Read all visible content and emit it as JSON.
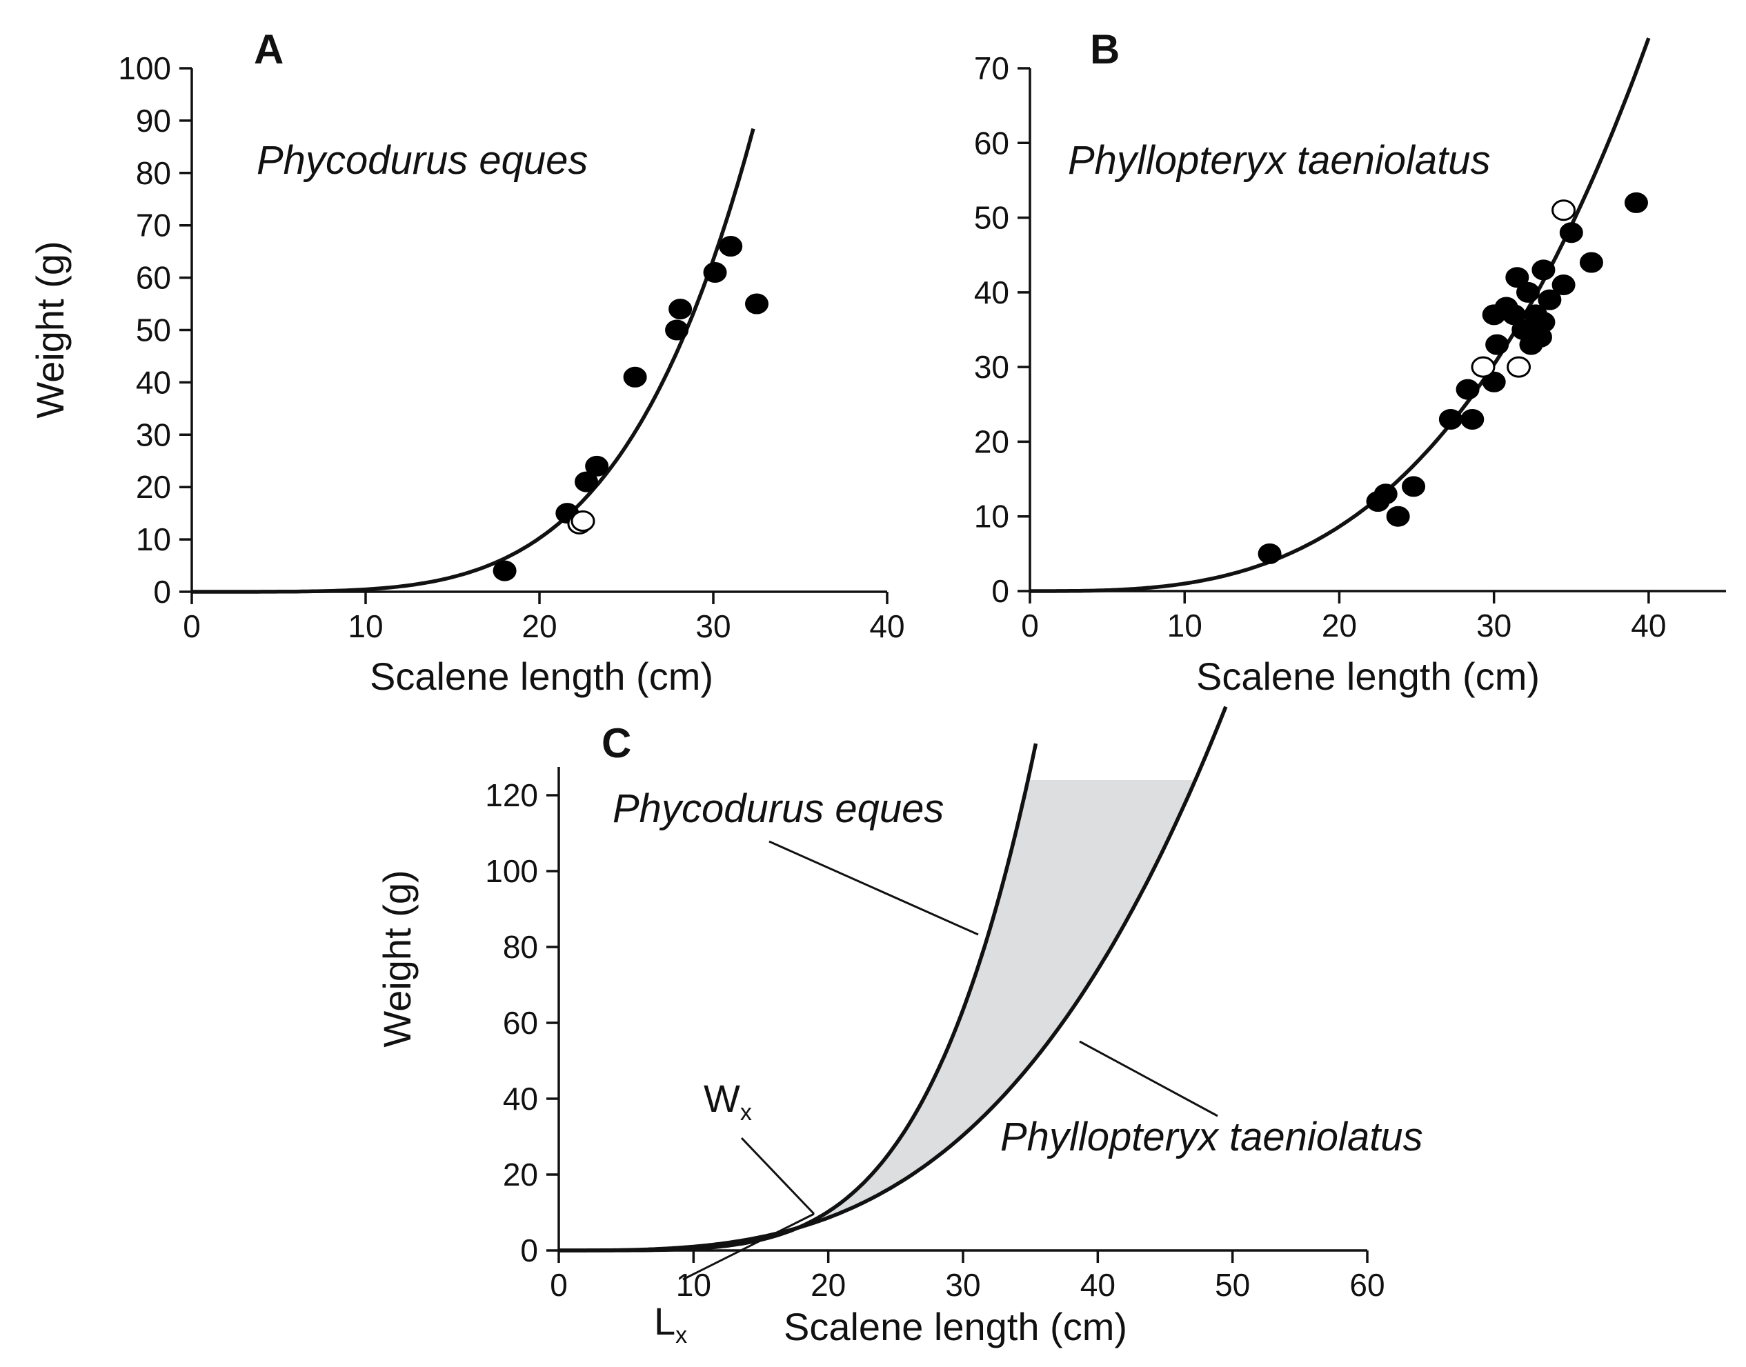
{
  "chart_data": [
    {
      "panel": "A",
      "type": "scatter",
      "title": "Phycodurus eques",
      "xlabel": "Scalene length (cm)",
      "ylabel": "Weight (g)",
      "xlim": [
        0,
        40
      ],
      "ylim": [
        0,
        100
      ],
      "xticks": [
        0,
        10,
        20,
        30,
        40
      ],
      "yticks": [
        0,
        10,
        20,
        30,
        40,
        50,
        60,
        70,
        80,
        90,
        100
      ],
      "series": [
        {
          "name": "filled",
          "marker": "filled-circle",
          "points": [
            {
              "x": 18.0,
              "y": 4
            },
            {
              "x": 21.6,
              "y": 15
            },
            {
              "x": 22.7,
              "y": 21
            },
            {
              "x": 23.3,
              "y": 24
            },
            {
              "x": 25.5,
              "y": 41
            },
            {
              "x": 27.9,
              "y": 50
            },
            {
              "x": 28.1,
              "y": 54
            },
            {
              "x": 30.1,
              "y": 61
            },
            {
              "x": 31.0,
              "y": 66
            },
            {
              "x": 32.5,
              "y": 55
            }
          ]
        },
        {
          "name": "open",
          "marker": "open-circle",
          "points": [
            {
              "x": 22.3,
              "y": 13
            },
            {
              "x": 22.5,
              "y": 13.5
            }
          ]
        },
        {
          "name": "fit",
          "marker": "line",
          "curve": {
            "a": 1.43e-05,
            "b": 4.5,
            "x_start": 0,
            "x_end": 32.3
          }
        }
      ]
    },
    {
      "panel": "B",
      "type": "scatter",
      "title": "Phyllopteryx taeniolatus",
      "xlabel": "Scalene length (cm)",
      "ylabel": "",
      "xlim": [
        0,
        45
      ],
      "ylim": [
        0,
        70
      ],
      "xticks": [
        0,
        10,
        20,
        30,
        40
      ],
      "yticks": [
        0,
        10,
        20,
        30,
        40,
        50,
        60,
        70
      ],
      "series": [
        {
          "name": "filled",
          "marker": "filled-circle",
          "points": [
            {
              "x": 15.5,
              "y": 5
            },
            {
              "x": 22.5,
              "y": 12
            },
            {
              "x": 23.0,
              "y": 13
            },
            {
              "x": 23.8,
              "y": 10
            },
            {
              "x": 24.8,
              "y": 14
            },
            {
              "x": 27.2,
              "y": 23
            },
            {
              "x": 28.3,
              "y": 27
            },
            {
              "x": 28.6,
              "y": 23
            },
            {
              "x": 29.3,
              "y": 30
            },
            {
              "x": 30.0,
              "y": 28
            },
            {
              "x": 30.2,
              "y": 33
            },
            {
              "x": 30.0,
              "y": 37
            },
            {
              "x": 30.8,
              "y": 38
            },
            {
              "x": 31.3,
              "y": 37
            },
            {
              "x": 31.5,
              "y": 42
            },
            {
              "x": 31.9,
              "y": 35
            },
            {
              "x": 32.2,
              "y": 40
            },
            {
              "x": 32.4,
              "y": 33
            },
            {
              "x": 32.7,
              "y": 37
            },
            {
              "x": 33.0,
              "y": 34
            },
            {
              "x": 33.2,
              "y": 43
            },
            {
              "x": 33.2,
              "y": 36
            },
            {
              "x": 33.6,
              "y": 39
            },
            {
              "x": 34.5,
              "y": 41
            },
            {
              "x": 35.0,
              "y": 48
            },
            {
              "x": 36.3,
              "y": 44
            },
            {
              "x": 39.2,
              "y": 52
            }
          ]
        },
        {
          "name": "open",
          "marker": "open-circle",
          "points": [
            {
              "x": 29.3,
              "y": 30
            },
            {
              "x": 31.6,
              "y": 30
            },
            {
              "x": 34.5,
              "y": 51
            }
          ]
        },
        {
          "name": "fit",
          "marker": "line",
          "curve": {
            "a": 0.0008,
            "b": 3.1,
            "x_start": 0,
            "x_end": 40.0
          }
        }
      ]
    },
    {
      "panel": "C",
      "type": "line",
      "title": "",
      "xlabel": "Scalene length (cm)",
      "ylabel": "Weight (g)",
      "xlim": [
        0,
        60
      ],
      "ylim": [
        0,
        130
      ],
      "xticks": [
        0,
        10,
        20,
        30,
        40,
        50,
        60
      ],
      "yticks": [
        0,
        20,
        40,
        60,
        80,
        100,
        120
      ],
      "series": [
        {
          "name": "Phycodurus eques",
          "curve": {
            "a": 1.43e-05,
            "b": 4.5,
            "x_start": 0,
            "x_end": 35.4
          }
        },
        {
          "name": "Phyllopteryx taeniolatus",
          "curve": {
            "a": 0.0008,
            "b": 3.1,
            "x_start": 0,
            "x_end": 49.5
          }
        }
      ],
      "shading": {
        "between": [
          "Phycodurus eques",
          "Phyllopteryx taeniolatus"
        ],
        "x_from": 19.2,
        "y_cap": 124,
        "color": "#dcdee0"
      },
      "annotations": [
        {
          "text": "Phycodurus eques",
          "style": "italic"
        },
        {
          "text": "Phyllopteryx taeniolatus",
          "style": "italic"
        },
        {
          "text": "W",
          "subscript": "x"
        },
        {
          "text": "L",
          "subscript": "x"
        }
      ]
    }
  ],
  "labels": {
    "panel_a": "A",
    "panel_b": "B",
    "panel_c": "C",
    "species_a": "Phycodurus eques",
    "species_b": "Phyllopteryx taeniolatus",
    "species_c1": "Phycodurus eques",
    "species_c2": "Phyllopteryx taeniolatus",
    "wx_main": "W",
    "wx_sub": "x",
    "lx_main": "L",
    "lx_sub": "x",
    "ylabel_a": "Weight (g)",
    "ylabel_c": "Weight (g)",
    "xlabel_a": "Scalene length (cm)",
    "xlabel_b": "Scalene length (cm)",
    "xlabel_c": "Scalene length (cm)"
  }
}
